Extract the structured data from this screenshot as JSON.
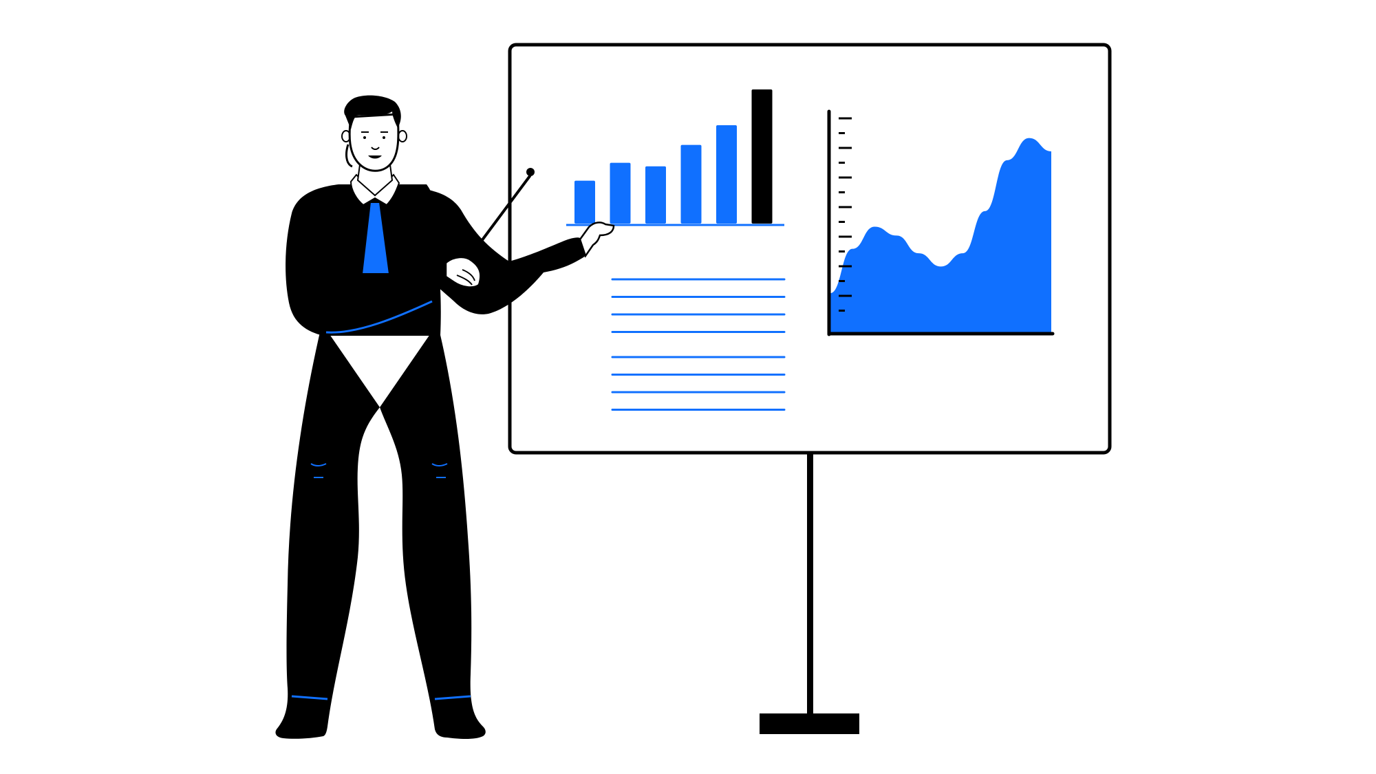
{
  "colors": {
    "ink": "#000000",
    "accent": "#1070ff",
    "paper": "#ffffff"
  },
  "illustration": {
    "subject": "presenter-figure",
    "board": "whiteboard-with-charts"
  },
  "bar_chart": {
    "values": [
      2.4,
      3.4,
      3.2,
      4.4,
      5.5,
      7.5
    ],
    "highlight_index": 5
  },
  "area_chart": {
    "values": [
      0.18,
      0.38,
      0.48,
      0.44,
      0.36,
      0.3,
      0.36,
      0.55,
      0.78,
      0.88,
      0.82
    ],
    "tick_count": 14
  },
  "text_lines": {
    "group_1_count": 4,
    "group_2_count": 4
  }
}
